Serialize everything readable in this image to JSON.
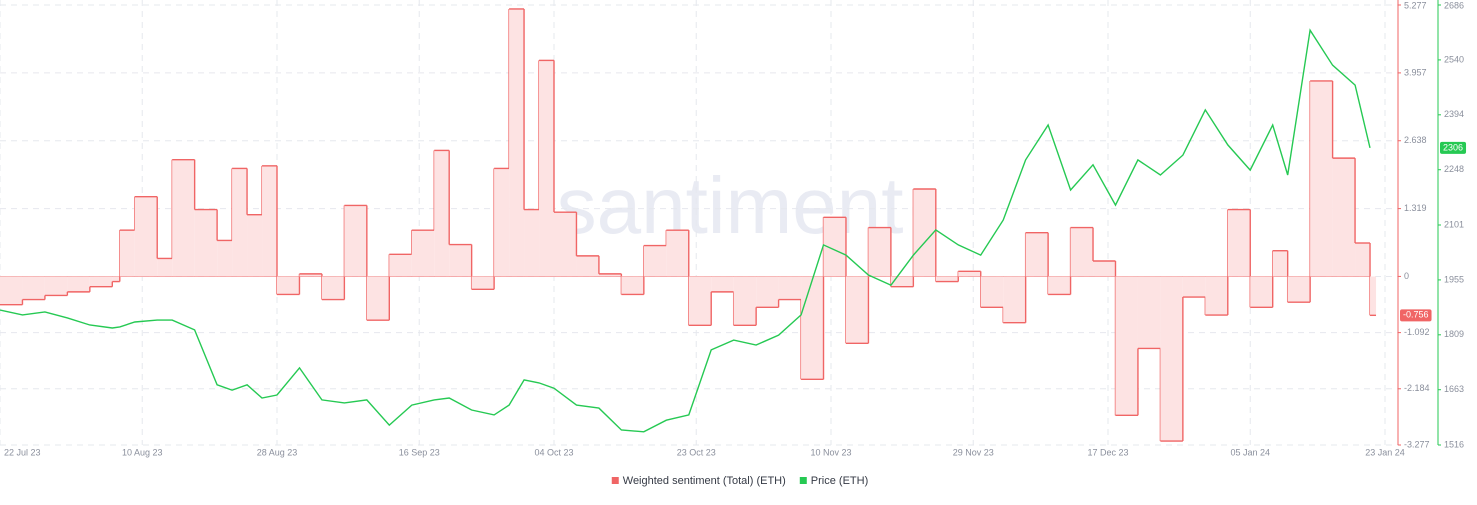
{
  "chart_data": {
    "type": "line",
    "watermark": "·santiment·",
    "x": [
      "2023-07-22",
      "2023-07-25",
      "2023-07-28",
      "2023-07-31",
      "2023-08-03",
      "2023-08-06",
      "2023-08-07",
      "2023-08-09",
      "2023-08-12",
      "2023-08-14",
      "2023-08-17",
      "2023-08-20",
      "2023-08-22",
      "2023-08-24",
      "2023-08-26",
      "2023-08-28",
      "2023-08-31",
      "2023-09-03",
      "2023-09-06",
      "2023-09-09",
      "2023-09-12",
      "2023-09-15",
      "2023-09-18",
      "2023-09-20",
      "2023-09-23",
      "2023-09-26",
      "2023-09-28",
      "2023-09-30",
      "2023-10-02",
      "2023-10-04",
      "2023-10-07",
      "2023-10-10",
      "2023-10-13",
      "2023-10-16",
      "2023-10-19",
      "2023-10-22",
      "2023-10-25",
      "2023-10-28",
      "2023-10-31",
      "2023-11-03",
      "2023-11-06",
      "2023-11-09",
      "2023-11-12",
      "2023-11-15",
      "2023-11-18",
      "2023-11-21",
      "2023-11-24",
      "2023-11-27",
      "2023-11-30",
      "2023-12-03",
      "2023-12-06",
      "2023-12-09",
      "2023-12-12",
      "2023-12-15",
      "2023-12-18",
      "2023-12-21",
      "2023-12-24",
      "2023-12-27",
      "2023-12-30",
      "2024-01-02",
      "2024-01-05",
      "2024-01-08",
      "2024-01-10",
      "2024-01-13",
      "2024-01-16",
      "2024-01-19",
      "2024-01-21"
    ],
    "series": [
      {
        "name": "Weighted sentiment (Total) (ETH)",
        "color": "#f06565",
        "fill": "#fde3e3",
        "step": true,
        "values": [
          -0.55,
          -0.45,
          -0.37,
          -0.3,
          -0.2,
          -0.1,
          0.9,
          1.55,
          0.35,
          2.27,
          1.3,
          0.7,
          2.1,
          1.2,
          2.15,
          -0.35,
          0.05,
          -0.45,
          1.38,
          -0.85,
          0.43,
          0.9,
          2.45,
          0.62,
          -0.25,
          2.1,
          5.2,
          1.3,
          4.2,
          1.25,
          0.4,
          0.05,
          -0.35,
          0.6,
          0.9,
          -0.95,
          -0.3,
          -0.95,
          -0.6,
          -0.45,
          -2.0,
          1.15,
          -1.3,
          0.95,
          -0.2,
          1.7,
          -0.1,
          0.1,
          -0.6,
          -0.9,
          0.85,
          -0.35,
          0.95,
          0.3,
          -2.7,
          -1.4,
          -3.2,
          -0.4,
          -0.75,
          1.3,
          -0.6,
          0.5,
          -0.5,
          3.8,
          2.3,
          0.65,
          -0.756
        ]
      },
      {
        "name": "Price (ETH)",
        "color": "#26c953",
        "axis": "y2",
        "values": [
          1875,
          1862,
          1870,
          1854,
          1835,
          1827,
          1830,
          1843,
          1848,
          1848,
          1822,
          1676,
          1662,
          1676,
          1641,
          1649,
          1721,
          1636,
          1628,
          1636,
          1569,
          1622,
          1636,
          1641,
          1609,
          1596,
          1622,
          1689,
          1681,
          1667,
          1622,
          1614,
          1556,
          1551,
          1582,
          1596,
          1769,
          1795,
          1782,
          1808,
          1862,
          2048,
          2021,
          1968,
          1941,
          2021,
          2088,
          2048,
          2021,
          2114,
          2274,
          2367,
          2194,
          2261,
          2154,
          2274,
          2234,
          2287,
          2407,
          2314,
          2247,
          2367,
          2234,
          2619,
          2526,
          2473,
          2306
        ]
      }
    ],
    "xlim": [
      "2023-07-22",
      "2024-01-23"
    ],
    "xticks": [
      {
        "value": "2023-07-22",
        "label": "22 Jul 23"
      },
      {
        "value": "2023-08-10",
        "label": "10 Aug 23"
      },
      {
        "value": "2023-08-28",
        "label": "28 Aug 23"
      },
      {
        "value": "2023-09-16",
        "label": "16 Sep 23"
      },
      {
        "value": "2023-10-04",
        "label": "04 Oct 23"
      },
      {
        "value": "2023-10-23",
        "label": "23 Oct 23"
      },
      {
        "value": "2023-11-10",
        "label": "10 Nov 23"
      },
      {
        "value": "2023-11-29",
        "label": "29 Nov 23"
      },
      {
        "value": "2023-12-17",
        "label": "17 Dec 23"
      },
      {
        "value": "2024-01-05",
        "label": "05 Jan 24"
      },
      {
        "value": "2024-01-23",
        "label": "23 Jan 24"
      }
    ],
    "ylim": [
      -3.277,
      5.277
    ],
    "yticks": [
      -3.277,
      -2.184,
      -1.092,
      0,
      1.319,
      2.638,
      3.957,
      5.277
    ],
    "y2lim": [
      1516,
      2686
    ],
    "y2ticks": [
      1516,
      1663,
      1809,
      1955,
      2101,
      2248,
      2394,
      2540,
      2686
    ],
    "grid": true,
    "legend": "bottom"
  }
}
